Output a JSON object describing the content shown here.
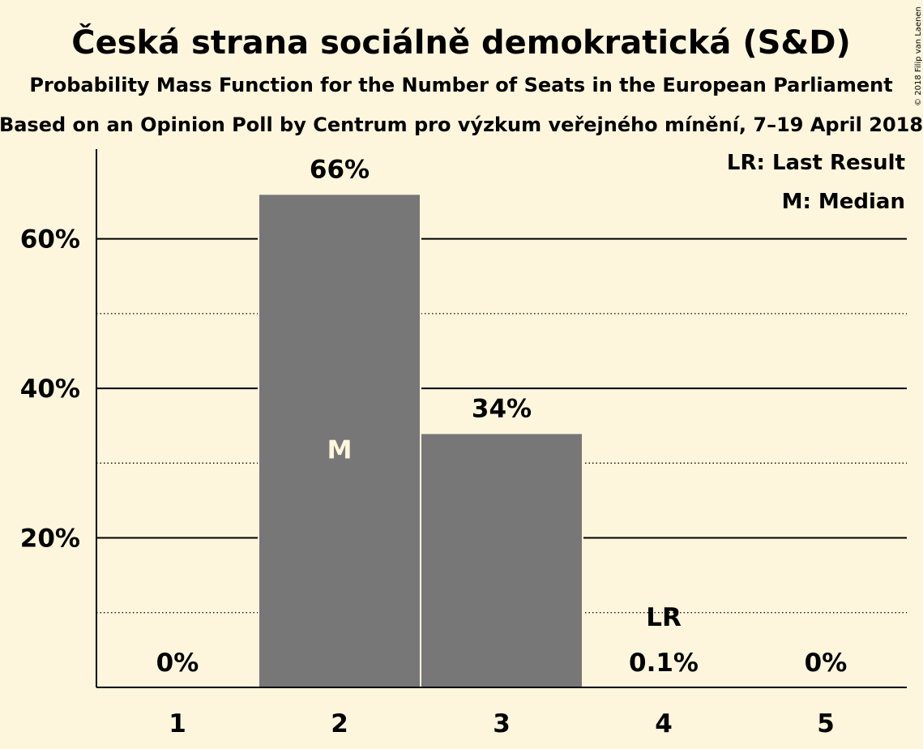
{
  "chart_data": {
    "type": "bar",
    "title": "Česká strana sociálně demokratická (S&D)",
    "subtitle": "Probability Mass Function for the Number of Seats in the European Parliament",
    "subtitle2": "Based on an Opinion Poll by Centrum pro výzkum veřejného mínění, 7–19 April 2018",
    "categories": [
      "1",
      "2",
      "3",
      "4",
      "5"
    ],
    "values": [
      0,
      66,
      34,
      0.1,
      0
    ],
    "value_labels": [
      "0%",
      "66%",
      "34%",
      "0.1%",
      "0%"
    ],
    "ylim": [
      0,
      72
    ],
    "yticks": [
      20,
      40,
      60
    ],
    "ytick_labels": [
      "20%",
      "40%",
      "60%"
    ],
    "minor_gridlines": [
      10,
      30,
      50
    ],
    "median_category": "2",
    "median_marker": "M",
    "last_result_category": "4",
    "last_result_marker": "LR",
    "legend": [
      "LR: Last Result",
      "M: Median"
    ],
    "legend_position": "top-right",
    "bar_color": "#777777",
    "background_color": "#fdf6dc",
    "copyright": "© 2018 Filip van Laenen"
  }
}
